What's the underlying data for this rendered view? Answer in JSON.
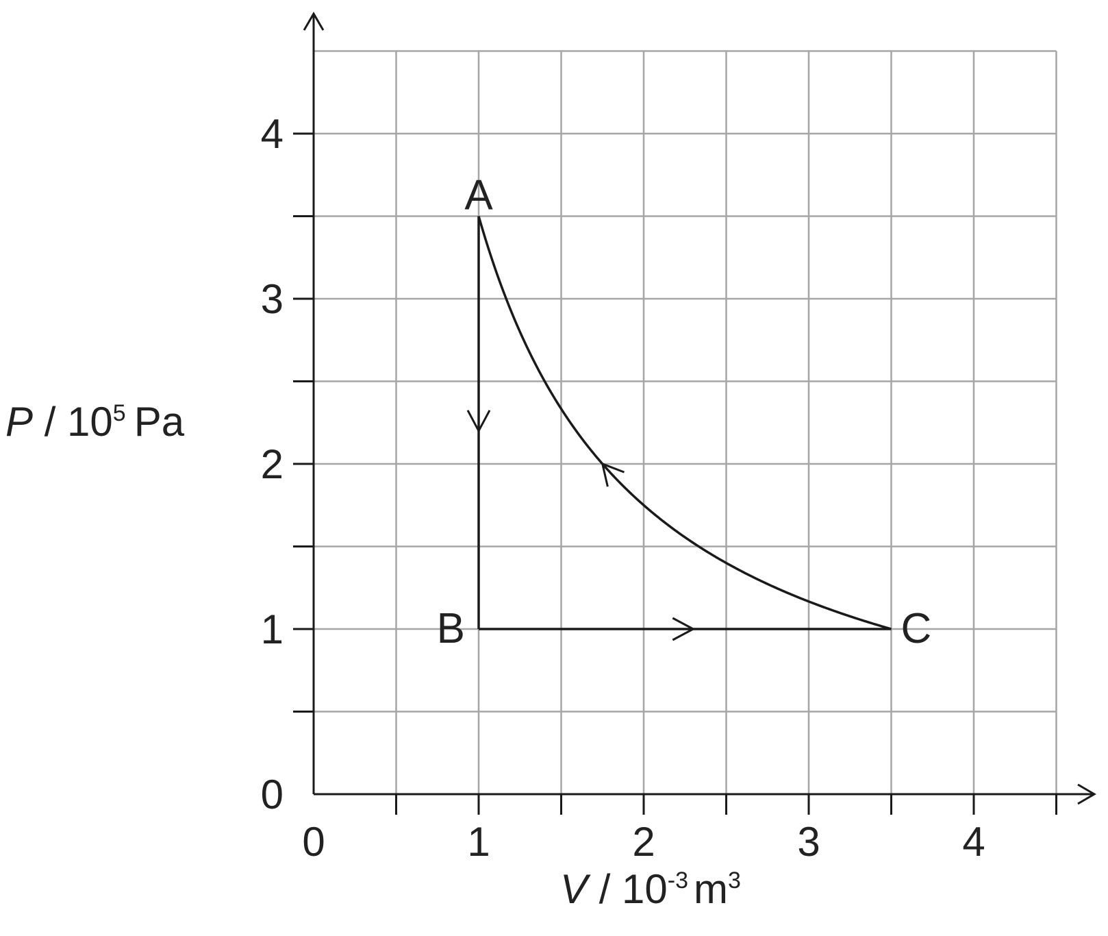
{
  "chart_data": {
    "type": "line",
    "title": "",
    "xlabel": {
      "var": "V",
      "sep": " / ",
      "base": "10",
      "exp": "-3",
      "unit": "m",
      "unit_exp": "3"
    },
    "ylabel": {
      "var": "P",
      "sep": " / ",
      "base": "10",
      "exp": "5",
      "unit": "Pa"
    },
    "xlim": [
      0,
      4.5
    ],
    "ylim": [
      0,
      4.5
    ],
    "x_ticks": [
      "0",
      "1",
      "2",
      "3",
      "4"
    ],
    "y_ticks": [
      "0",
      "1",
      "2",
      "3",
      "4"
    ],
    "grid": {
      "enabled": true,
      "x_step": 0.5,
      "y_step": 0.5,
      "color": "#a6a6a6"
    },
    "line_color": "#1a1a1a",
    "points": [
      {
        "label": "A",
        "x": 1.0,
        "y": 3.5
      },
      {
        "label": "B",
        "x": 1.0,
        "y": 1.0
      },
      {
        "label": "C",
        "x": 3.5,
        "y": 1.0
      }
    ],
    "series": [
      {
        "from": "A",
        "to": "B",
        "type": "straight",
        "direction": "A-to-B",
        "arrow_at": {
          "x": 1.0,
          "y": 2.2
        }
      },
      {
        "from": "B",
        "to": "C",
        "type": "straight",
        "direction": "B-to-C",
        "arrow_at": {
          "x": 2.3,
          "y": 1.0
        }
      },
      {
        "from": "C",
        "to": "A",
        "type": "isothermal",
        "pv_constant": 3.5,
        "direction": "C-to-A",
        "arrow_at": {
          "x": 1.75,
          "y": 2.0
        }
      }
    ]
  }
}
